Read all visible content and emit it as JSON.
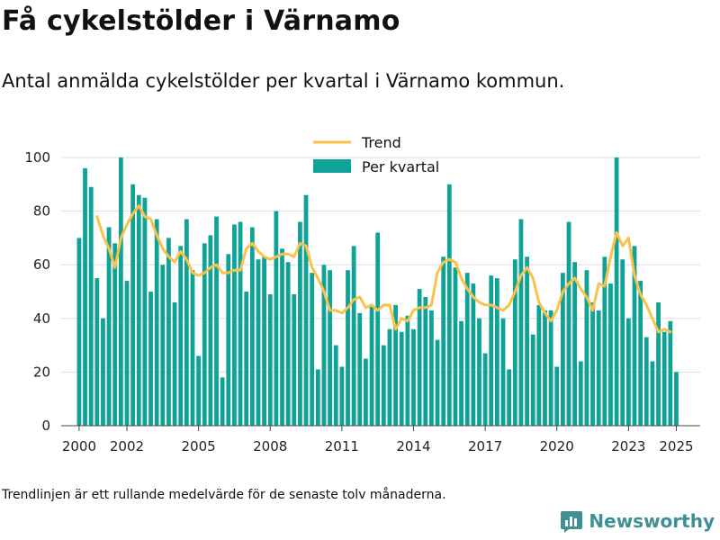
{
  "header": {
    "title": "Få cykelstölder i Värnamo",
    "subtitle": "Antal anmälda cykelstölder per kvartal i Värnamo kommun."
  },
  "footer": {
    "note": "Trendlinjen är ett rullande medelvärde för de senaste tolv månaderna.",
    "brand": "Newsworthy"
  },
  "colors": {
    "bars": "#0fa397",
    "trend": "#f9c24a",
    "grid": "#dddddd",
    "brand": "#3f8f96"
  },
  "chart_data": {
    "type": "bar",
    "title": "",
    "xlabel": "",
    "ylabel": "",
    "ylim": [
      0,
      100
    ],
    "yticks": [
      0,
      20,
      40,
      60,
      80,
      100
    ],
    "xlim": [
      1999.25,
      2026.0
    ],
    "xticks": [
      2000,
      2002,
      2005,
      2008,
      2011,
      2014,
      2017,
      2020,
      2023,
      2025
    ],
    "grid": true,
    "legend_position": "top-center",
    "legend": [
      "Trend",
      "Per kvartal"
    ],
    "series": [
      {
        "name": "Per kvartal",
        "type": "bar",
        "start": 2000.0,
        "step": 0.25,
        "values": [
          70,
          96,
          89,
          55,
          40,
          74,
          68,
          100,
          54,
          90,
          86,
          85,
          50,
          77,
          60,
          70,
          46,
          67,
          77,
          58,
          26,
          68,
          71,
          78,
          18,
          64,
          75,
          76,
          50,
          74,
          62,
          63,
          49,
          80,
          66,
          61,
          49,
          76,
          86,
          57,
          21,
          60,
          58,
          30,
          22,
          58,
          67,
          42,
          25,
          45,
          72,
          30,
          36,
          45,
          35,
          41,
          36,
          51,
          48,
          43,
          32,
          63,
          90,
          59,
          39,
          57,
          53,
          40,
          27,
          56,
          55,
          40,
          21,
          62,
          77,
          63,
          34,
          45,
          43,
          43,
          22,
          57,
          76,
          61,
          24,
          58,
          46,
          43,
          63,
          53,
          100,
          62,
          40,
          67,
          54,
          33,
          24,
          46,
          35,
          39,
          20
        ]
      },
      {
        "name": "Trend",
        "type": "line",
        "start": 2000.75,
        "step": 0.25,
        "values": [
          78,
          71,
          66,
          59,
          70,
          75,
          79,
          82,
          78,
          77,
          71,
          66,
          63,
          61,
          65,
          62,
          57,
          56,
          57,
          59,
          60,
          57,
          57,
          58,
          58,
          66,
          68,
          65,
          63,
          62,
          63,
          64,
          64,
          63,
          68,
          67,
          59,
          55,
          50,
          43,
          43,
          42,
          44,
          47,
          48,
          44,
          45,
          43,
          45,
          45,
          36,
          40,
          39,
          43,
          44,
          44,
          45,
          57,
          61,
          62,
          61,
          55,
          51,
          48,
          46,
          45,
          45,
          44,
          43,
          45,
          50,
          56,
          59,
          55,
          46,
          42,
          39,
          43,
          50,
          53,
          55,
          51,
          48,
          43,
          53,
          52,
          63,
          72,
          67,
          70,
          56,
          49,
          45,
          40,
          35,
          36,
          35
        ]
      }
    ]
  }
}
